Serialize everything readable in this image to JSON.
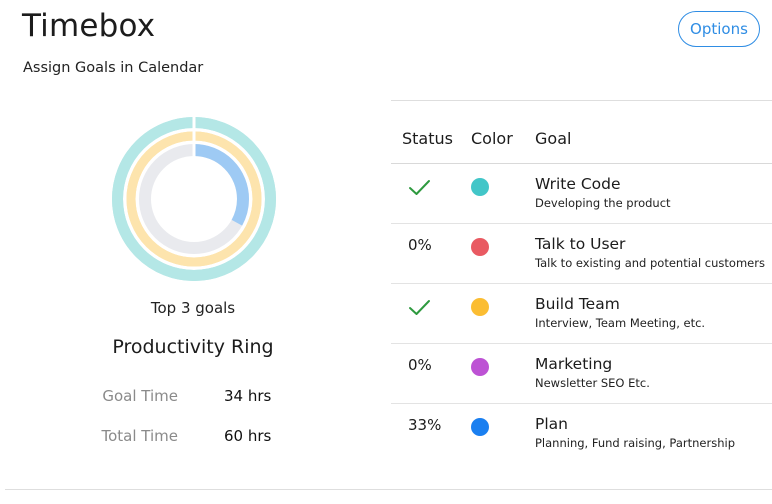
{
  "header": {
    "title": "Timebox",
    "subtitle": "Assign Goals in Calendar",
    "options_label": "Options"
  },
  "ring": {
    "caption": "Top 3 goals",
    "title": "Productivity Ring",
    "rings": [
      {
        "track_color": "#b4e7e6",
        "fill_color": "#b4e7e6",
        "fraction": 1.0
      },
      {
        "track_color": "#fde4ad",
        "fill_color": "#fde4ad",
        "fraction": 1.0
      },
      {
        "track_color": "#e9eaee",
        "fill_color": "#9ecaf4",
        "fraction": 0.33
      }
    ]
  },
  "stats": {
    "goal_time_label": "Goal Time",
    "goal_time_value": "34 hrs",
    "total_time_label": "Total Time",
    "total_time_value": "60 hrs"
  },
  "table": {
    "columns": {
      "status": "Status",
      "color": "Color",
      "goal": "Goal"
    },
    "rows": [
      {
        "status": "",
        "done": true,
        "color": "#42c6c8",
        "name": "Write Code",
        "desc": "Developing the product"
      },
      {
        "status": "0%",
        "done": false,
        "color": "#e95a62",
        "name": "Talk to User",
        "desc": "Talk to existing and potential customers"
      },
      {
        "status": "",
        "done": true,
        "color": "#fbbd32",
        "name": "Build Team",
        "desc": "Interview, Team Meeting, etc."
      },
      {
        "status": "0%",
        "done": false,
        "color": "#bd52d4",
        "name": "Marketing",
        "desc": "Newsletter SEO Etc."
      },
      {
        "status": "33%",
        "done": false,
        "color": "#1a7ff0",
        "name": "Plan",
        "desc": "Planning, Fund raising, Partnership"
      }
    ]
  },
  "icons": {
    "check": "check-icon"
  },
  "colors": {
    "accent": "#2f8de4",
    "check": "#2e9a3f"
  }
}
